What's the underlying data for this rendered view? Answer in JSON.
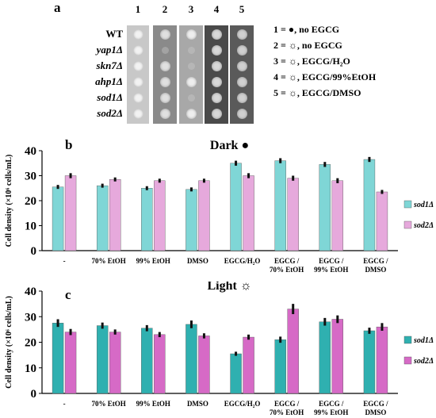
{
  "panel_a": {
    "label": "a",
    "column_numbers": [
      "1",
      "2",
      "3",
      "4",
      "5"
    ],
    "genotypes": [
      "WT",
      "yap1Δ",
      "skn7Δ",
      "ahp1Δ",
      "sod1Δ",
      "sod2Δ"
    ],
    "legend": [
      "1 = ●, no EGCG",
      "2 = ☼, no EGCG",
      "3 = ☼, EGCG/H₂O",
      "4 = ☼, EGCG/99%EtOH",
      "5 = ☼, EGCG/DMSO"
    ],
    "spot_grid_growth": [
      [
        1,
        1,
        1,
        1,
        1
      ],
      [
        1,
        0,
        0,
        1,
        1
      ],
      [
        1,
        1,
        0,
        1,
        1
      ],
      [
        1,
        1,
        1,
        1,
        1
      ],
      [
        1,
        1,
        0,
        1,
        1
      ],
      [
        1,
        1,
        1,
        1,
        1
      ]
    ]
  },
  "chart_data": [
    {
      "type": "bar",
      "panel": "b",
      "title": "Dark ●",
      "ylabel": "Cell density (×10⁶ cells/mL)",
      "ylim": [
        0,
        40
      ],
      "yticks": [
        0,
        10,
        20,
        30,
        40
      ],
      "categories": [
        "-",
        "70% EtOH",
        "99% EtOH",
        "DMSO",
        "EGCG/H₂O",
        "EGCG / 70% EtOH",
        "EGCG / 99% EtOH",
        "EGCG / DMSO"
      ],
      "series": [
        {
          "name": "sod1Δ",
          "color": "#7fd6d6",
          "values": [
            25.5,
            26,
            25,
            24.5,
            35,
            36,
            34.5,
            36.5
          ],
          "errors": [
            0.8,
            0.8,
            0.8,
            0.8,
            1.0,
            1.0,
            1.0,
            1.0
          ]
        },
        {
          "name": "sod2Δ",
          "color": "#e6a9dc",
          "values": [
            30,
            28.5,
            28,
            28,
            30,
            29,
            28,
            23.5
          ],
          "errors": [
            1.0,
            0.8,
            0.8,
            0.8,
            1.0,
            1.0,
            1.0,
            0.8
          ]
        }
      ]
    },
    {
      "type": "bar",
      "panel": "c",
      "title": "Light ☼",
      "ylabel": "Cell density (×10⁶ cells/mL)",
      "ylim": [
        0,
        40
      ],
      "yticks": [
        0,
        10,
        20,
        30,
        40
      ],
      "categories": [
        "-",
        "70% EtOH",
        "99% EtOH",
        "DMSO",
        "EGCG/H₂O",
        "EGCG / 70% EtOH",
        "EGCG / 99% EtOH",
        "EGCG / DMSO"
      ],
      "series": [
        {
          "name": "sod1Δ",
          "color": "#2fb0b0",
          "values": [
            27.5,
            26.5,
            25.5,
            27,
            15.5,
            21,
            28,
            24.5
          ],
          "errors": [
            1.5,
            1.2,
            1.2,
            1.5,
            0.8,
            1.2,
            1.5,
            1.2
          ]
        },
        {
          "name": "sod2Δ",
          "color": "#d66ac6",
          "values": [
            24,
            24,
            23,
            22.5,
            22,
            33,
            29,
            26
          ],
          "errors": [
            1.2,
            1.0,
            1.0,
            1.0,
            1.0,
            2.0,
            1.5,
            1.5
          ]
        }
      ]
    }
  ]
}
